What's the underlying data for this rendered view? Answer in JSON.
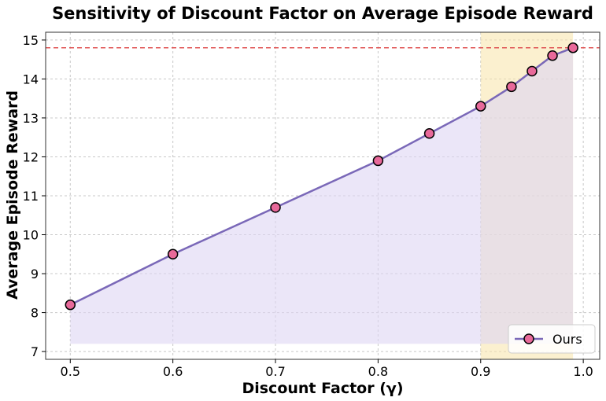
{
  "chart_data": {
    "type": "line",
    "title": "Sensitivity of Discount Factor on Average Episode Reward",
    "xlabel": "Discount Factor (γ)",
    "ylabel": "Average Episode Reward",
    "xlim": [
      0.476,
      1.016
    ],
    "ylim": [
      6.8,
      15.2
    ],
    "xticks": [
      "0.5",
      "0.6",
      "0.7",
      "0.8",
      "0.9",
      "1.0"
    ],
    "yticks": [
      "7",
      "8",
      "9",
      "10",
      "11",
      "12",
      "13",
      "14",
      "15"
    ],
    "grid": true,
    "legend_position": "bottom-right",
    "series": [
      {
        "name": "Ours",
        "x": [
          0.5,
          0.6,
          0.7,
          0.8,
          0.85,
          0.9,
          0.93,
          0.95,
          0.97,
          0.99
        ],
        "y": [
          8.2,
          9.5,
          10.7,
          11.9,
          12.6,
          13.3,
          13.8,
          14.2,
          14.6,
          14.8
        ],
        "line_color": "#7a68b8",
        "marker_color": "#e8699a",
        "fill_color": "#ddd6f3"
      }
    ],
    "reference_line": {
      "y": 14.8,
      "color": "#e05555",
      "style": "dashed"
    },
    "highlight_region": {
      "x": [
        0.9,
        0.99
      ],
      "color": "#f7e3a8"
    },
    "fill_baseline": 7.2
  }
}
